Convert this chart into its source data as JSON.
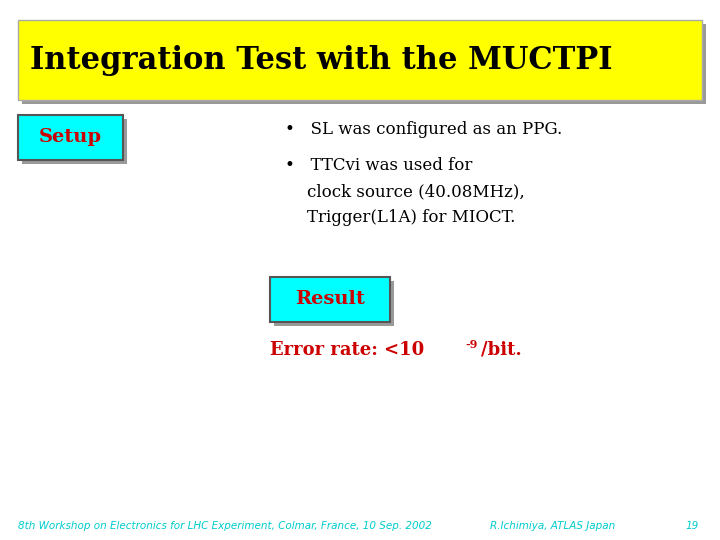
{
  "title": "Integration Test with the MUCTPI",
  "title_bg": "#FFFF00",
  "title_color": "#000000",
  "title_fontsize": 22,
  "setup_label": "Setup",
  "setup_label_color": "#CC0000",
  "setup_bg": "#00FFFF",
  "result_label": "Result",
  "result_label_color": "#CC0000",
  "result_bg": "#00FFFF",
  "bullet1": "SL was configured as an PPG.",
  "bullet2_line1": "TTCvi was used for",
  "bullet2_line2": "clock source (40.08MHz),",
  "bullet2_line3": "Trigger(L1A) for MIOCT.",
  "error_rate_prefix": "Error rate: <10",
  "error_rate_sup": "-9",
  "error_rate_suffix": "/bit.",
  "error_rate_color": "#CC0000",
  "bullet_color": "#000000",
  "body_fontsize": 12,
  "footer_left": "8th Workshop on Electronics for LHC Experiment, Colmar, France, 10 Sep. 2002",
  "footer_right": "R.Ichimiya, ATLAS Japan",
  "footer_page": "19",
  "footer_color": "#00CCCC",
  "footer_fontsize": 7.5,
  "bg_color": "#FFFFFF",
  "shadow_color": "#999999"
}
